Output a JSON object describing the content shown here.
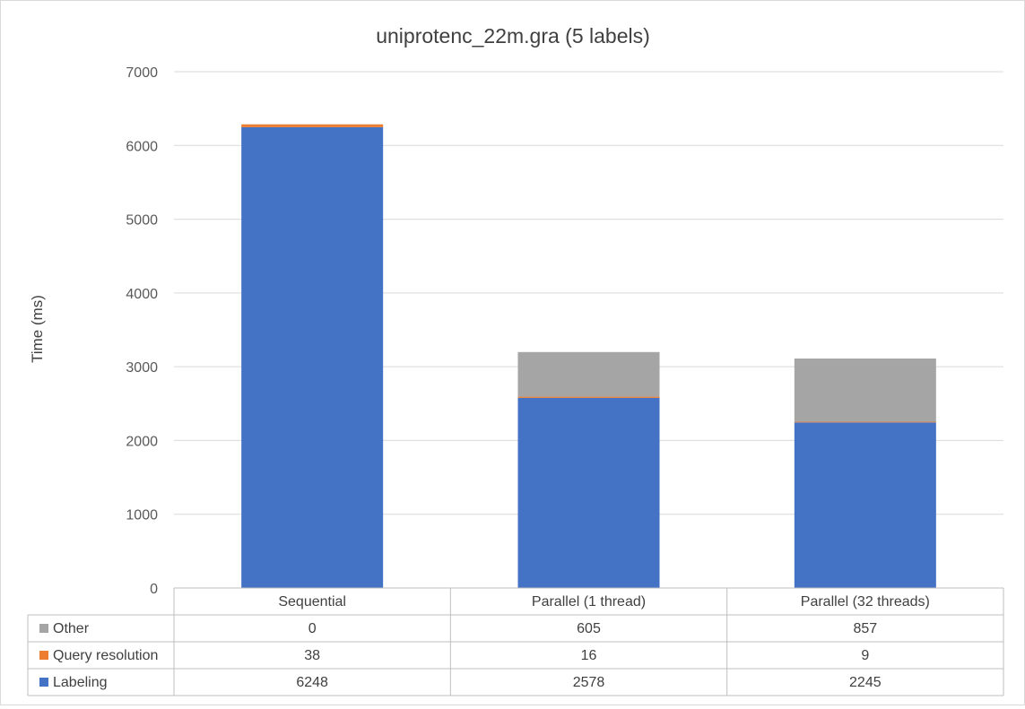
{
  "chart_data": {
    "type": "bar",
    "stacked": true,
    "title": "uniprotenc_22m.gra  (5 labels)",
    "ylabel": "Time (ms)",
    "xlabel": "",
    "ylim": [
      0,
      7000
    ],
    "yticks": [
      0,
      1000,
      2000,
      3000,
      4000,
      5000,
      6000,
      7000
    ],
    "grid": true,
    "legend": "data-table",
    "categories": [
      "Sequential",
      "Parallel (1 thread)",
      "Parallel (32 threads)"
    ],
    "series": [
      {
        "name": "Labeling",
        "color": "#4472c4",
        "values": [
          6248,
          2578,
          2245
        ]
      },
      {
        "name": "Query resolution",
        "color": "#ed7d31",
        "values": [
          38,
          16,
          9
        ]
      },
      {
        "name": "Other",
        "color": "#a5a5a5",
        "values": [
          0,
          605,
          857
        ]
      }
    ],
    "table_row_order": [
      "Other",
      "Query resolution",
      "Labeling"
    ]
  }
}
